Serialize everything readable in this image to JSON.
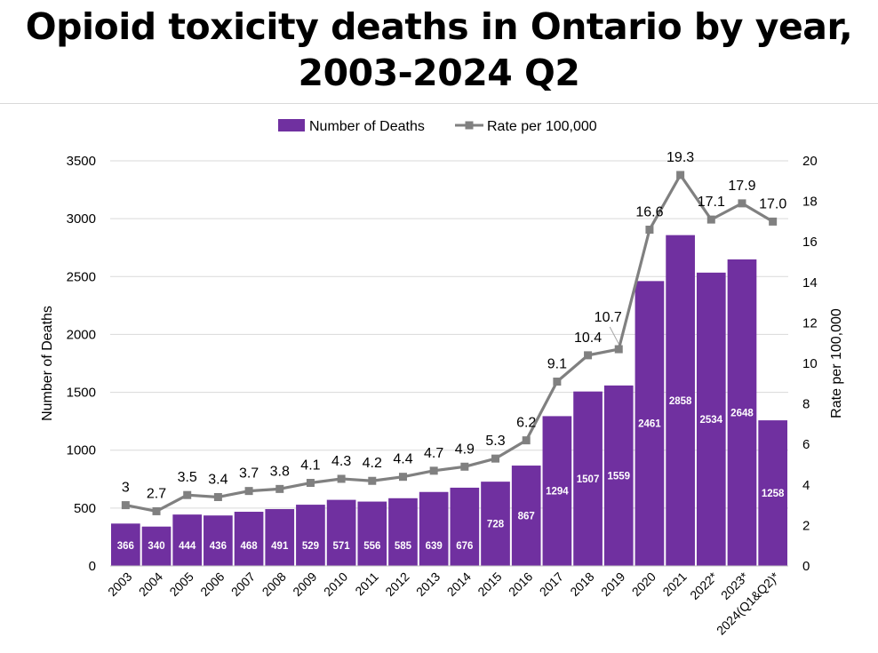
{
  "colors": {
    "bar": "#7030a0",
    "line": "#808080",
    "grid": "#d9d9d9",
    "bar_label": "#ffffff"
  },
  "chart_data": {
    "type": "bar+line",
    "title": "Opioid toxicity deaths in Ontario by year, 2003-2024 Q2",
    "title_lines": [
      "Opioid toxicity deaths in Ontario by year,",
      "2003-2024 Q2"
    ],
    "categories": [
      "2003",
      "2004",
      "2005",
      "2006",
      "2007",
      "2008",
      "2009",
      "2010",
      "2011",
      "2012",
      "2013",
      "2014",
      "2015",
      "2016",
      "2017",
      "2018",
      "2019",
      "2020",
      "2021",
      "2022*",
      "2023*",
      "2024(Q1&Q2)*"
    ],
    "series": [
      {
        "name": "Number of Deaths",
        "type": "bar",
        "axis": "left",
        "values": [
          366,
          340,
          444,
          436,
          468,
          491,
          529,
          571,
          556,
          585,
          639,
          676,
          728,
          867,
          1294,
          1507,
          1559,
          2461,
          2858,
          2534,
          2648,
          1258
        ],
        "labels": [
          "366",
          "340",
          "444",
          "436",
          "468",
          "491",
          "529",
          "571",
          "556",
          "585",
          "639",
          "676",
          "728",
          "867",
          "1294",
          "1507",
          "1559",
          "2461",
          "2858",
          "2534",
          "2648",
          "1258"
        ]
      },
      {
        "name": "Rate per 100,000",
        "type": "line",
        "axis": "right",
        "values": [
          3,
          2.7,
          3.5,
          3.4,
          3.7,
          3.8,
          4.1,
          4.3,
          4.2,
          4.4,
          4.7,
          4.9,
          5.3,
          6.2,
          9.1,
          10.4,
          10.7,
          16.6,
          19.3,
          17.1,
          17.9,
          17.0
        ],
        "labels": [
          "3",
          "2.7",
          "3.5",
          "3.4",
          "3.7",
          "3.8",
          "4.1",
          "4.3",
          "4.2",
          "4.4",
          "4.7",
          "4.9",
          "5.3",
          "6.2",
          "9.1",
          "10.4",
          "10.7",
          "16.6",
          "19.3",
          "17.1",
          "17.9",
          "17.0"
        ]
      }
    ],
    "ylabel": "Number of Deaths",
    "y2label": "Rate per 100,000",
    "ylim": [
      0,
      3500
    ],
    "y2lim": [
      0,
      20
    ],
    "yticks": [
      "0",
      "500",
      "1000",
      "1500",
      "2000",
      "2500",
      "3000",
      "3500"
    ],
    "y2ticks": [
      "0",
      "2",
      "4",
      "6",
      "8",
      "10",
      "12",
      "14",
      "16",
      "18",
      "20"
    ],
    "grid": true,
    "legend": "top-center"
  }
}
